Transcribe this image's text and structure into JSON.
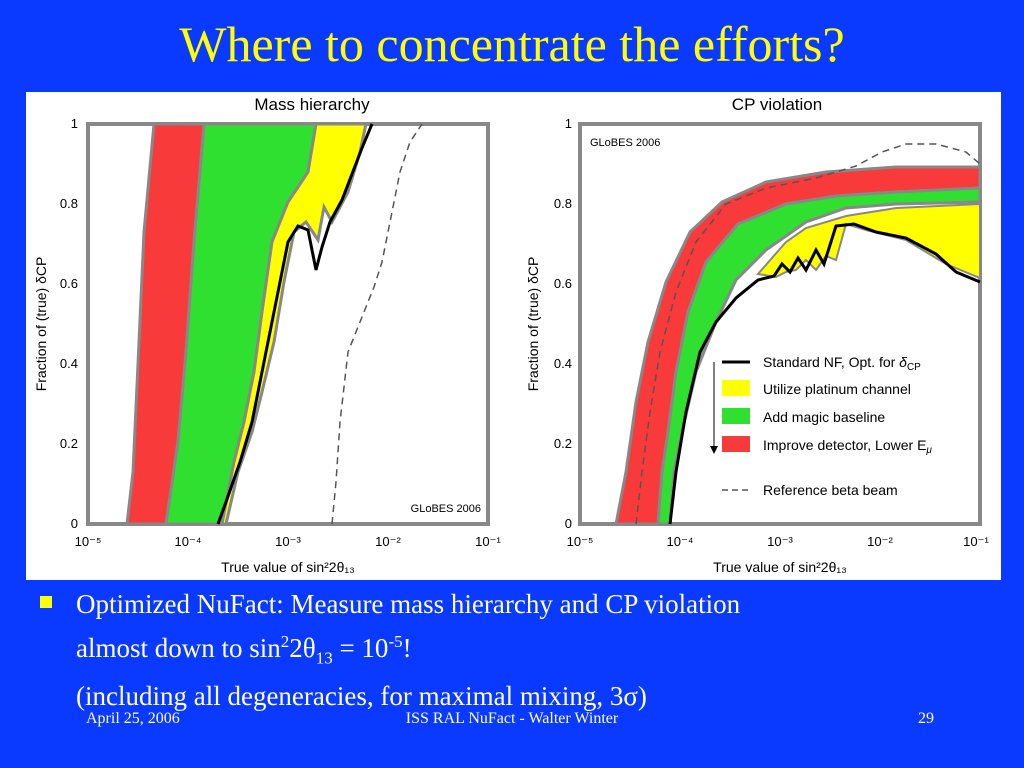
{
  "slide": {
    "title": "Where to concentrate the efforts?",
    "bullet": {
      "line1": "Optimized NuFact: Measure mass hierarchy and CP violation",
      "line2_prefix": "almost down to sin",
      "line2_sup1": "2",
      "line2_mid": "2θ",
      "line2_sub": "13",
      "line2_eq": " = 10",
      "line2_sup2": "-5",
      "line2_suffix": "!",
      "line3": "(including all degeneracies, for maximal mixing, 3σ)"
    },
    "footer": {
      "date": "April 25, 2006",
      "center": "ISS RAL NuFact - Walter Winter",
      "page": "29"
    }
  },
  "colors": {
    "background": "#0a39ff",
    "title": "#ffff00",
    "red": "#f83a3a",
    "green": "#30e030",
    "yellow": "#ffff00",
    "gray": "#888888"
  },
  "chart_data": [
    {
      "type": "area",
      "title": "Mass hierarchy",
      "xlabel": "True value of sin²2θ₁₃",
      "ylabel": "Fraction of (true) δCP",
      "xscale": "log",
      "xlim": [
        1e-05,
        0.1
      ],
      "ylim": [
        0,
        1
      ],
      "x_tick_labels": [
        "10⁻⁵",
        "10⁻⁴",
        "10⁻³",
        "10⁻²",
        "10⁻¹"
      ],
      "y_tick_labels": [
        "0",
        "0.2",
        "0.4",
        "0.6",
        "0.8",
        "1"
      ],
      "annotation": "GLoBES 2006",
      "series": [
        {
          "name": "Improve detector, Lower Eμ",
          "color": "red",
          "points": [
            [
              2e-05,
              0
            ],
            [
              2.2e-05,
              0.2
            ],
            [
              2.6e-05,
              0.5
            ],
            [
              3e-05,
              0.7
            ],
            [
              3.5e-05,
              1.0
            ]
          ]
        },
        {
          "name": "Add magic baseline",
          "color": "green",
          "points": [
            [
              4.5e-05,
              0
            ],
            [
              5e-05,
              0.2
            ],
            [
              6e-05,
              0.4
            ],
            [
              7e-05,
              0.6
            ],
            [
              8.5e-05,
              0.8
            ],
            [
              0.00011,
              1.0
            ]
          ]
        },
        {
          "name": "Utilize platinum channel",
          "color": "yellow",
          "points": [
            [
              0.00018,
              0
            ],
            [
              0.0002,
              0.1
            ],
            [
              0.00035,
              0.3
            ],
            [
              0.0006,
              0.5
            ],
            [
              0.0009,
              0.6
            ],
            [
              0.0013,
              0.75
            ],
            [
              0.003,
              0.85
            ],
            [
              0.006,
              1.0
            ]
          ]
        },
        {
          "name": "Standard NF, Opt. for δCP",
          "color": "black",
          "points": [
            [
              0.00018,
              0
            ],
            [
              0.00021,
              0.1
            ],
            [
              0.0004,
              0.3
            ],
            [
              0.0007,
              0.5
            ],
            [
              0.001,
              0.62
            ],
            [
              0.0013,
              0.73
            ],
            [
              0.0017,
              0.75
            ],
            [
              0.002,
              0.64
            ],
            [
              0.0023,
              0.69
            ],
            [
              0.0035,
              0.82
            ],
            [
              0.0055,
              0.92
            ],
            [
              0.008,
              1.0
            ]
          ]
        },
        {
          "name": "Reference beta beam",
          "color": "dashed",
          "points": [
            [
              0.003,
              0
            ],
            [
              0.0033,
              0.2
            ],
            [
              0.004,
              0.4
            ],
            [
              0.006,
              0.55
            ],
            [
              0.009,
              0.62
            ],
            [
              0.012,
              0.75
            ],
            [
              0.014,
              0.9
            ],
            [
              0.016,
              1.0
            ]
          ]
        }
      ]
    },
    {
      "type": "area",
      "title": "CP violation",
      "xlabel": "True value of sin²2θ₁₃",
      "ylabel": "Fraction of (true) δCP",
      "xscale": "log",
      "xlim": [
        1e-05,
        0.1
      ],
      "ylim": [
        0,
        1
      ],
      "x_tick_labels": [
        "10⁻⁵",
        "10⁻⁴",
        "10⁻³",
        "10⁻²",
        "10⁻¹"
      ],
      "y_tick_labels": [
        "0",
        "0.2",
        "0.4",
        "0.6",
        "0.8",
        "1"
      ],
      "annotation": "GLoBES 2006",
      "series": [
        {
          "name": "Improve detector, Lower Eμ",
          "color": "red",
          "points": [
            [
              2.5e-05,
              0
            ],
            [
              4e-05,
              0.2
            ],
            [
              7e-05,
              0.4
            ],
            [
              0.00013,
              0.6
            ],
            [
              0.0003,
              0.75
            ],
            [
              0.001,
              0.84
            ],
            [
              0.01,
              0.88
            ],
            [
              0.1,
              0.88
            ]
          ]
        },
        {
          "name": "Add magic baseline",
          "color": "green",
          "points": [
            [
              6e-05,
              0
            ],
            [
              8e-05,
              0.2
            ],
            [
              0.00013,
              0.4
            ],
            [
              0.00025,
              0.6
            ],
            [
              0.0006,
              0.72
            ],
            [
              0.002,
              0.78
            ],
            [
              0.01,
              0.82
            ],
            [
              0.1,
              0.83
            ]
          ]
        },
        {
          "name": "Utilize platinum channel",
          "color": "yellow",
          "points": [
            [
              8e-05,
              0
            ],
            [
              0.00012,
              0.3
            ],
            [
              0.00025,
              0.5
            ],
            [
              0.0006,
              0.64
            ],
            [
              0.0015,
              0.7
            ],
            [
              0.003,
              0.74
            ],
            [
              0.01,
              0.78
            ],
            [
              0.1,
              0.8
            ]
          ]
        },
        {
          "name": "Standard NF, Opt. for δCP",
          "color": "black",
          "points": [
            [
              8e-05,
              0
            ],
            [
              0.00012,
              0.3
            ],
            [
              0.00025,
              0.5
            ],
            [
              0.0006,
              0.6
            ],
            [
              0.001,
              0.62
            ],
            [
              0.0012,
              0.65
            ],
            [
              0.0014,
              0.61
            ],
            [
              0.0018,
              0.66
            ],
            [
              0.0022,
              0.64
            ],
            [
              0.0028,
              0.68
            ],
            [
              0.0035,
              0.75
            ],
            [
              0.005,
              0.74
            ],
            [
              0.01,
              0.71
            ],
            [
              0.025,
              0.67
            ],
            [
              0.06,
              0.62
            ],
            [
              0.1,
              0.61
            ]
          ]
        },
        {
          "name": "Reference beta beam",
          "color": "dashed",
          "points": [
            [
              4.5e-05,
              0
            ],
            [
              6e-05,
              0.2
            ],
            [
              0.0001,
              0.4
            ],
            [
              0.0002,
              0.6
            ],
            [
              0.0005,
              0.78
            ],
            [
              0.0015,
              0.86
            ],
            [
              0.005,
              0.9
            ],
            [
              0.01,
              0.95
            ],
            [
              0.02,
              0.94
            ],
            [
              0.05,
              0.9
            ],
            [
              0.1,
              0.88
            ]
          ]
        }
      ]
    }
  ],
  "legend": [
    {
      "label_main": "Standard NF, Opt. for ",
      "label_sym": "δ",
      "label_sub": "CP",
      "style": "black-line"
    },
    {
      "label_main": "Utilize platinum channel",
      "style": "yellow-box"
    },
    {
      "label_main": "Add magic baseline",
      "style": "green-box"
    },
    {
      "label_main": "Improve detector, Lower E",
      "label_sub": "μ",
      "style": "red-box"
    },
    {
      "label_main": "Reference beta beam",
      "style": "dashed-line"
    }
  ]
}
